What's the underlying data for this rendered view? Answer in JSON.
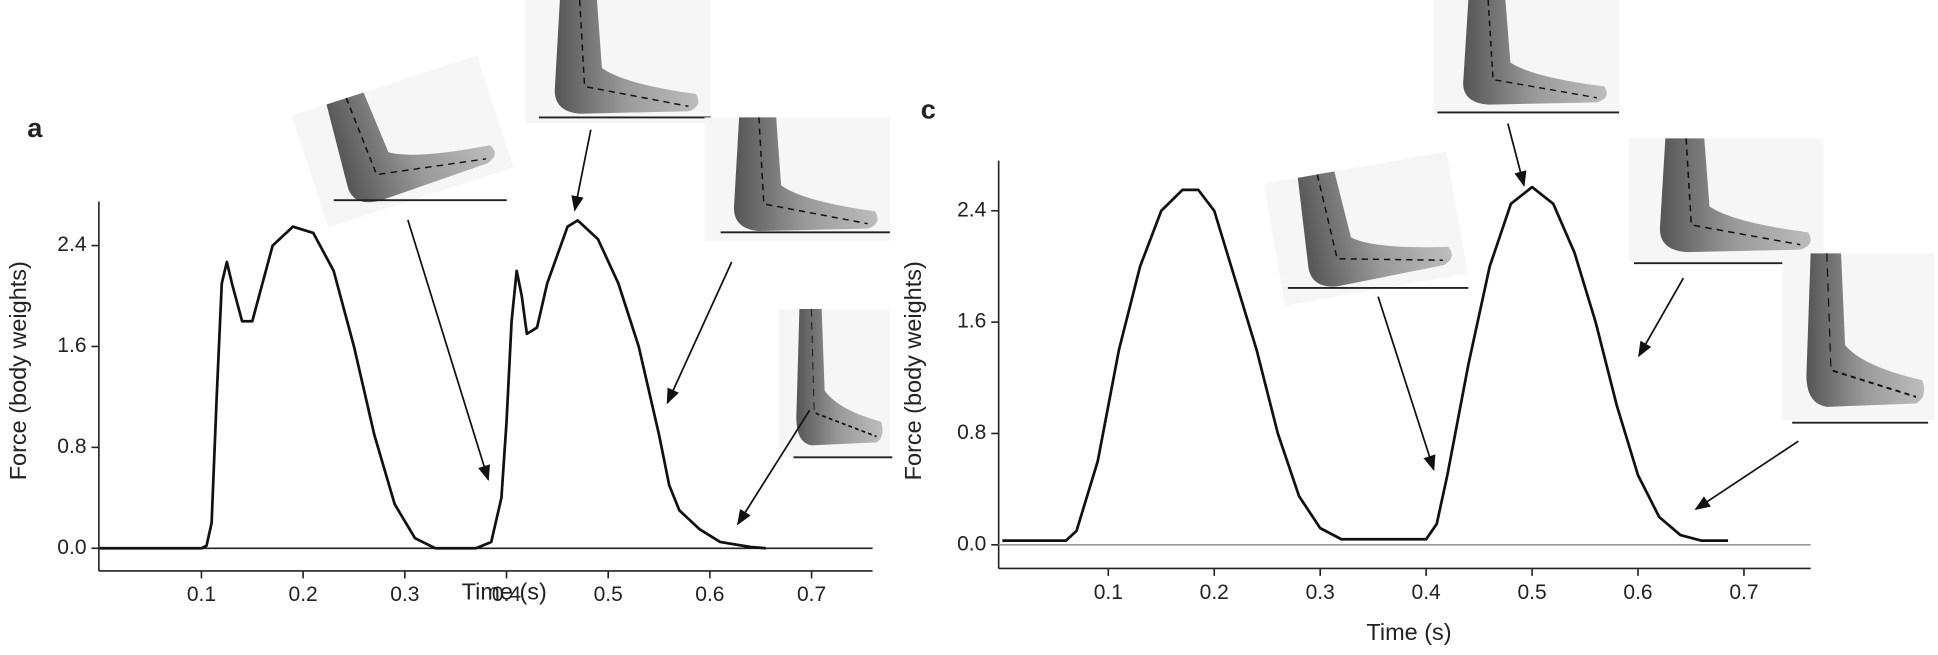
{
  "chart_data": [
    {
      "type": "line",
      "panel_label": "a",
      "x_label": "Time (s)",
      "y_label": "Force (body weights)",
      "xlim": [
        0,
        0.76
      ],
      "ylim": [
        -0.18,
        2.75
      ],
      "xticks": [
        0.1,
        0.2,
        0.3,
        0.4,
        0.5,
        0.6,
        0.7
      ],
      "yticks": [
        {
          "value": 0,
          "label": "0.0"
        },
        0.8,
        1.6,
        2.4
      ],
      "baseline_color": "#222",
      "series": [
        {
          "color": "#111",
          "x": [
            0,
            0.1,
            0.105,
            0.11,
            0.115,
            0.12,
            0.125,
            0.13,
            0.14,
            0.15,
            0.16,
            0.17,
            0.19,
            0.21,
            0.23,
            0.25,
            0.27,
            0.29,
            0.31,
            0.33,
            0.37,
            0.385,
            0.395,
            0.4,
            0.405,
            0.41,
            0.415,
            0.42,
            0.43,
            0.44,
            0.46,
            0.47,
            0.49,
            0.51,
            0.53,
            0.55,
            0.56,
            0.57,
            0.59,
            0.61,
            0.64,
            0.655
          ],
          "values": [
            0,
            0,
            0.02,
            0.2,
            1.2,
            2.1,
            2.27,
            2.1,
            1.8,
            1.8,
            2.1,
            2.4,
            2.55,
            2.5,
            2.2,
            1.6,
            0.9,
            0.35,
            0.08,
            0,
            0,
            0.05,
            0.4,
            1.0,
            1.8,
            2.2,
            2.0,
            1.7,
            1.75,
            2.1,
            2.55,
            2.6,
            2.45,
            2.1,
            1.6,
            0.9,
            0.5,
            0.3,
            0.15,
            0.05,
            0.01,
            0
          ]
        }
      ]
    },
    {
      "type": "line",
      "panel_label": "c",
      "x_label": "Time (s)",
      "y_label": "Force (body weights)",
      "xlim": [
        0,
        0.763
      ],
      "ylim": [
        -0.17,
        2.76
      ],
      "xticks": [
        0.1,
        0.2,
        0.3,
        0.4,
        0.5,
        0.6,
        0.7
      ],
      "yticks": [
        {
          "value": 0,
          "label": "0.0"
        },
        0.8,
        1.6,
        2.4
      ],
      "baseline_color": "#999",
      "series": [
        {
          "color": "#111",
          "x": [
            0,
            0.06,
            0.07,
            0.09,
            0.11,
            0.13,
            0.15,
            0.17,
            0.185,
            0.2,
            0.22,
            0.24,
            0.26,
            0.28,
            0.3,
            0.32,
            0.4,
            0.41,
            0.42,
            0.44,
            0.46,
            0.48,
            0.5,
            0.52,
            0.54,
            0.56,
            0.58,
            0.6,
            0.62,
            0.64,
            0.66,
            0.685
          ],
          "values": [
            0.03,
            0.03,
            0.1,
            0.6,
            1.4,
            2.0,
            2.4,
            2.55,
            2.55,
            2.4,
            1.9,
            1.4,
            0.8,
            0.35,
            0.12,
            0.04,
            0.04,
            0.15,
            0.5,
            1.3,
            2.0,
            2.45,
            2.57,
            2.45,
            2.1,
            1.6,
            1.0,
            0.5,
            0.2,
            0.07,
            0.03,
            0.03
          ]
        }
      ]
    }
  ]
}
